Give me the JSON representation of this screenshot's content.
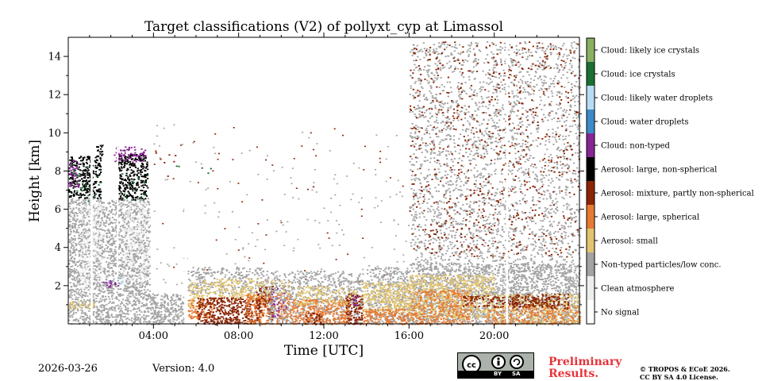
{
  "footer": {
    "date": "2026-03-26",
    "version": "Version: 4.0",
    "license_badge": {
      "by": "BY",
      "sa": "SA"
    },
    "preliminary": "Preliminary Results.",
    "copyright_line1": "© TROPOS & ECoE 2026.",
    "copyright_line2": "CC BY SA 4.0 License."
  },
  "chart_data": {
    "type": "heatmap",
    "title": "Target classifications (V2) of pollyxt_cyp at Limassol",
    "xlabel": "Time [UTC]",
    "ylabel": "Height [km]",
    "xlim": [
      0,
      24
    ],
    "ylim": [
      0,
      15
    ],
    "x_ticks": [
      {
        "value": 4,
        "label": "04:00"
      },
      {
        "value": 8,
        "label": "08:00"
      },
      {
        "value": 12,
        "label": "12:00"
      },
      {
        "value": 16,
        "label": "16:00"
      },
      {
        "value": 20,
        "label": "20:00"
      }
    ],
    "y_ticks": [
      {
        "value": 2,
        "label": "2"
      },
      {
        "value": 4,
        "label": "4"
      },
      {
        "value": 6,
        "label": "6"
      },
      {
        "value": 8,
        "label": "8"
      },
      {
        "value": 10,
        "label": "10"
      },
      {
        "value": 12,
        "label": "12"
      },
      {
        "value": 14,
        "label": "14"
      }
    ],
    "classes": [
      {
        "label": "No signal",
        "color": "#ffffff"
      },
      {
        "label": "Clean atmosphere",
        "color": "#eeeeee"
      },
      {
        "label": "Non-typed particles/low conc.",
        "color": "#a3a3a3"
      },
      {
        "label": "Aerosol: small",
        "color": "#e2c46f"
      },
      {
        "label": "Aerosol: large, spherical",
        "color": "#e67a32"
      },
      {
        "label": "Aerosol: mixture, partly non-spherical",
        "color": "#8b2505"
      },
      {
        "label": "Aerosol: large, non-spherical",
        "color": "#000000"
      },
      {
        "label": "Cloud: non-typed",
        "color": "#882594"
      },
      {
        "label": "Cloud: water droplets",
        "color": "#3c8ac8"
      },
      {
        "label": "Cloud: likely water droplets",
        "color": "#b8dcf5"
      },
      {
        "label": "Cloud: ice crystals",
        "color": "#1b6f34"
      },
      {
        "label": "Cloud: likely ice crystals",
        "color": "#89b163"
      }
    ],
    "regions": [
      {
        "class": 2,
        "t0": 0.0,
        "t1": 1.6,
        "h0": 0.0,
        "h1": 6.6,
        "density": 0.85
      },
      {
        "class": 1,
        "t0": 0.5,
        "t1": 1.6,
        "h0": 1.8,
        "h1": 6.3,
        "density": 0.55
      },
      {
        "class": 2,
        "t0": 1.6,
        "t1": 2.3,
        "h0": 0.0,
        "h1": 6.5,
        "density": 0.75
      },
      {
        "class": 2,
        "t0": 2.3,
        "t1": 3.8,
        "h0": 0.0,
        "h1": 6.6,
        "density": 0.8
      },
      {
        "class": 1,
        "t0": 2.5,
        "t1": 3.8,
        "h0": 2.2,
        "h1": 6.4,
        "density": 0.5
      },
      {
        "class": 2,
        "t0": 3.8,
        "t1": 5.4,
        "h0": 0.0,
        "h1": 1.6,
        "density": 0.95
      },
      {
        "class": 3,
        "t0": 0.0,
        "t1": 1.2,
        "h0": 0.8,
        "h1": 1.2,
        "density": 0.65
      },
      {
        "class": 9,
        "t0": 1.7,
        "t1": 2.6,
        "h0": 2.1,
        "h1": 2.5,
        "density": 0.35
      },
      {
        "class": 7,
        "t0": 1.6,
        "t1": 2.4,
        "h0": 1.9,
        "h1": 2.3,
        "density": 0.45
      },
      {
        "class": 6,
        "t0": 0.0,
        "t1": 1.5,
        "h0": 6.6,
        "h1": 8.8,
        "density": 0.85
      },
      {
        "class": 6,
        "t0": 1.3,
        "t1": 1.6,
        "h0": 8.8,
        "h1": 9.6,
        "density": 0.65
      },
      {
        "class": 7,
        "t0": 0.0,
        "t1": 0.5,
        "h0": 7.2,
        "h1": 8.6,
        "density": 0.55
      },
      {
        "class": 10,
        "t0": 0.0,
        "t1": 1.5,
        "h0": 6.4,
        "h1": 8.4,
        "density": 0.08
      },
      {
        "class": 6,
        "t0": 2.3,
        "t1": 3.7,
        "h0": 6.5,
        "h1": 8.9,
        "density": 0.85
      },
      {
        "class": 7,
        "t0": 2.1,
        "t1": 3.6,
        "h0": 8.5,
        "h1": 9.3,
        "density": 0.55
      },
      {
        "class": 10,
        "t0": 2.3,
        "t1": 3.7,
        "h0": 6.5,
        "h1": 8.0,
        "density": 0.08
      },
      {
        "class": 5,
        "t0": 4.0,
        "t1": 5.0,
        "h0": 7.5,
        "h1": 9.3,
        "density": 0.04
      },
      {
        "class": 10,
        "t0": 4.2,
        "t1": 7.0,
        "h0": 7.8,
        "h1": 8.3,
        "density": 0.03
      },
      {
        "class": 3,
        "t0": 5.6,
        "t1": 6.3,
        "h0": 0.9,
        "h1": 2.2,
        "density": 0.8
      },
      {
        "class": 2,
        "t0": 5.6,
        "t1": 9.3,
        "h0": 1.6,
        "h1": 3.0,
        "density": 0.5
      },
      {
        "class": 3,
        "t0": 6.3,
        "t1": 9.0,
        "h0": 1.3,
        "h1": 2.4,
        "density": 0.55
      },
      {
        "class": 4,
        "t0": 5.6,
        "t1": 6.8,
        "h0": 0.3,
        "h1": 1.3,
        "density": 0.8
      },
      {
        "class": 5,
        "t0": 6.0,
        "t1": 9.0,
        "h0": 0.0,
        "h1": 1.4,
        "density": 0.9
      },
      {
        "class": 4,
        "t0": 8.3,
        "t1": 10.4,
        "h0": 0.0,
        "h1": 1.6,
        "density": 0.85
      },
      {
        "class": 5,
        "t0": 8.8,
        "t1": 9.6,
        "h0": 0.2,
        "h1": 2.0,
        "density": 0.55
      },
      {
        "class": 7,
        "t0": 9.5,
        "t1": 10.2,
        "h0": 0.4,
        "h1": 2.0,
        "density": 0.35
      },
      {
        "class": 3,
        "t0": 9.0,
        "t1": 10.4,
        "h0": 1.6,
        "h1": 2.4,
        "density": 0.45
      },
      {
        "class": 2,
        "t0": 9.3,
        "t1": 13.8,
        "h0": 0.0,
        "h1": 2.8,
        "density": 0.5
      },
      {
        "class": 4,
        "t0": 10.4,
        "t1": 13.2,
        "h0": 0.0,
        "h1": 1.3,
        "density": 0.9
      },
      {
        "class": 3,
        "t0": 10.6,
        "t1": 13.5,
        "h0": 1.0,
        "h1": 2.0,
        "density": 0.5
      },
      {
        "class": 5,
        "t0": 11.0,
        "t1": 11.9,
        "h0": 0.0,
        "h1": 0.6,
        "density": 0.6
      },
      {
        "class": 5,
        "t0": 13.0,
        "t1": 13.8,
        "h0": 0.0,
        "h1": 1.6,
        "density": 0.85
      },
      {
        "class": 7,
        "t0": 13.3,
        "t1": 13.6,
        "h0": 0.8,
        "h1": 1.5,
        "density": 0.55
      },
      {
        "class": 2,
        "t0": 14.0,
        "t1": 16.0,
        "h0": 0.0,
        "h1": 3.0,
        "density": 0.7
      },
      {
        "class": 3,
        "t0": 13.8,
        "t1": 16.0,
        "h0": 0.6,
        "h1": 2.2,
        "density": 0.85
      },
      {
        "class": 4,
        "t0": 13.8,
        "t1": 16.0,
        "h0": 0.0,
        "h1": 0.8,
        "density": 0.9
      },
      {
        "class": 2,
        "t0": 16.0,
        "t1": 24.0,
        "h0": 0.0,
        "h1": 7.0,
        "density": 0.65
      },
      {
        "class": 2,
        "t0": 16.0,
        "t1": 24.0,
        "h0": 7.0,
        "h1": 14.8,
        "density": 0.35
      },
      {
        "class": 2,
        "t0": 16.0,
        "t1": 24.0,
        "h0": 0.0,
        "h1": 3.2,
        "density": 0.95
      },
      {
        "class": 5,
        "t0": 16.0,
        "t1": 24.0,
        "h0": 3.5,
        "h1": 14.8,
        "density": 0.07
      },
      {
        "class": 3,
        "t0": 16.0,
        "t1": 20.0,
        "h0": 0.3,
        "h1": 2.6,
        "density": 0.75
      },
      {
        "class": 3,
        "t0": 20.0,
        "t1": 24.0,
        "h0": 0.0,
        "h1": 1.6,
        "density": 0.6
      },
      {
        "class": 4,
        "t0": 16.0,
        "t1": 19.0,
        "h0": 0.0,
        "h1": 1.8,
        "density": 0.6
      },
      {
        "class": 4,
        "t0": 19.5,
        "t1": 24.0,
        "h0": 0.0,
        "h1": 1.0,
        "density": 0.55
      },
      {
        "class": 5,
        "t0": 18.5,
        "t1": 23.0,
        "h0": 0.9,
        "h1": 1.5,
        "density": 0.55
      },
      {
        "class": 5,
        "t0": 20.8,
        "t1": 23.5,
        "h0": 0.8,
        "h1": 1.6,
        "density": 0.45
      }
    ],
    "gaps": [
      {
        "t0": 1.05,
        "t1": 1.15,
        "h0": 0,
        "h1": 15
      },
      {
        "t0": 2.28,
        "t1": 2.33,
        "h0": 2.5,
        "h1": 9.3
      },
      {
        "t0": 5.45,
        "t1": 5.58,
        "h0": 0,
        "h1": 15
      },
      {
        "t0": 20.55,
        "t1": 20.65,
        "h0": 0,
        "h1": 15
      }
    ]
  }
}
